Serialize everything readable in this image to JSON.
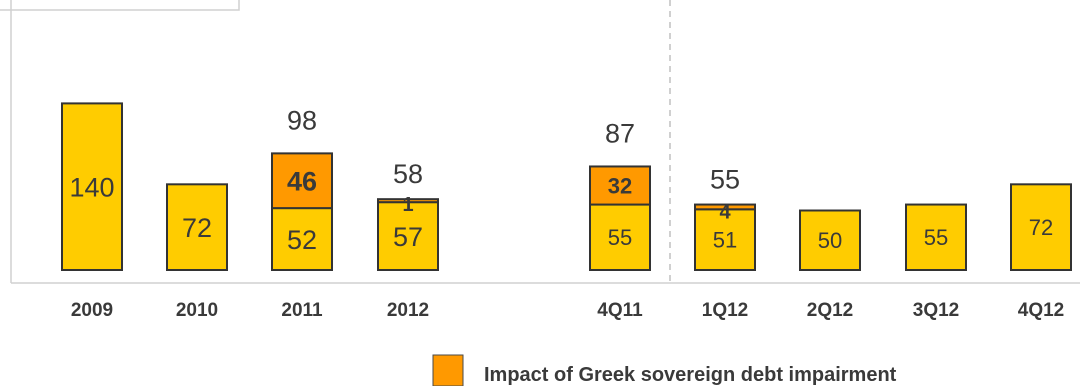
{
  "chart_data": {
    "type": "bar",
    "stacked": true,
    "categories": [
      "2009",
      "2010",
      "2011",
      "2012",
      "4Q11",
      "1Q12",
      "2Q12",
      "3Q12",
      "4Q12"
    ],
    "series": [
      {
        "key": "base",
        "values": [
          140,
          72,
          52,
          57,
          55,
          51,
          50,
          55,
          72
        ],
        "color": "#FFCC00"
      },
      {
        "key": "greek",
        "name": "Impact of Greek sovereign debt impairment",
        "values": [
          null,
          null,
          46,
          1,
          32,
          4,
          null,
          null,
          null
        ],
        "color": "#FF9900"
      }
    ],
    "totals": [
      null,
      null,
      98,
      58,
      87,
      55,
      null,
      null,
      null
    ],
    "groups": [
      {
        "label": "",
        "categories": [
          "2009",
          "2010",
          "2011",
          "2012"
        ]
      },
      {
        "label": "",
        "categories": [
          "4Q11",
          "1Q12",
          "2Q12",
          "3Q12",
          "4Q12"
        ]
      }
    ],
    "divider_between": [
      "2012",
      "4Q11"
    ],
    "legend": {
      "position": "bottom",
      "entries": [
        {
          "series": "greek",
          "label": "Impact of Greek sovereign debt impairment"
        }
      ]
    },
    "grid": false
  }
}
